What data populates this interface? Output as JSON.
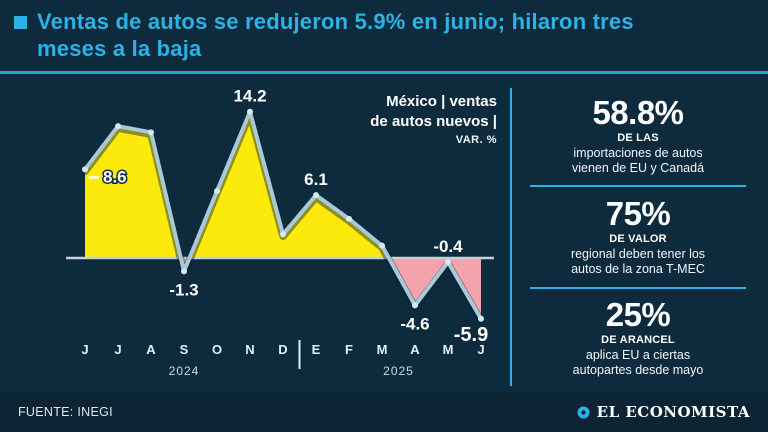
{
  "colors": {
    "accent": "#2bb3e8",
    "background": "#0e2b3e",
    "footer_background": "#0c2434"
  },
  "title": {
    "line1": "Ventas de autos se redujeron 5.9% en junio; hilaron tres",
    "line2": "meses a la baja"
  },
  "chart_data": {
    "type": "area",
    "title": "México | ventas de autos nuevos | VAR. %",
    "legend_lines": {
      "l1": "México | ventas",
      "l2": "de autos nuevos |",
      "l3": "VAR. %"
    },
    "categories": [
      "J",
      "J",
      "A",
      "S",
      "O",
      "N",
      "D",
      "E",
      "F",
      "M",
      "A",
      "M",
      "J"
    ],
    "values": [
      8.6,
      12.8,
      12.2,
      -1.3,
      6.5,
      14.2,
      2.3,
      6.1,
      3.8,
      1.2,
      -4.6,
      -0.4,
      -5.9
    ],
    "unit": "VAR. %",
    "ylim": [
      -8,
      16
    ],
    "years": [
      {
        "label": "2024",
        "center_index": 3
      },
      {
        "label": "2025",
        "center_index": 9.5
      }
    ],
    "divider_after_index": 6,
    "labeled_points": [
      {
        "index": 0,
        "text": "8.6",
        "position": "right"
      },
      {
        "index": 3,
        "text": "-1.3",
        "position": "below"
      },
      {
        "index": 5,
        "text": "14.2",
        "position": "above"
      },
      {
        "index": 7,
        "text": "6.1",
        "position": "above"
      },
      {
        "index": 10,
        "text": "-4.6",
        "position": "below"
      },
      {
        "index": 11,
        "text": "-0.4",
        "position": "above"
      },
      {
        "index": 12,
        "text": "-5.9",
        "position": "below-left"
      }
    ],
    "colors": {
      "positive_fill": "#fcea0d",
      "negative_fill": "#f2a3ac",
      "line": "#a9c9da",
      "marker": "#d6e8f1",
      "axis": "#c6d2d9"
    }
  },
  "stats": [
    {
      "value": "58.8%",
      "label": "DE LAS",
      "desc1": "importaciones de autos",
      "desc2": "vienen de EU y Canadá"
    },
    {
      "value": "75%",
      "label": "DE VALOR",
      "desc1": "regional deben tener los",
      "desc2": "autos de la zona T-MEC"
    },
    {
      "value": "25%",
      "label": "DE ARANCEL",
      "desc1": "aplica EU a ciertas",
      "desc2": "autopartes desde mayo"
    }
  ],
  "footer": {
    "source": "FUENTE: INEGI",
    "brand": "EL ECONOMISTA"
  }
}
